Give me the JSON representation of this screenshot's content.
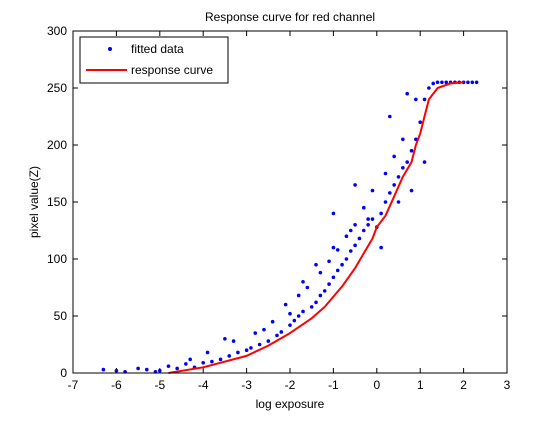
{
  "chart_data": {
    "type": "scatter",
    "title": "Response curve for red channel",
    "xlabel": "log exposure",
    "ylabel": "pixel value(Z)",
    "xlim": [
      -7,
      3
    ],
    "ylim": [
      0,
      300
    ],
    "xticks": [
      -7,
      -6,
      -5,
      -4,
      -3,
      -2,
      -1,
      0,
      1,
      2,
      3
    ],
    "yticks": [
      0,
      50,
      100,
      150,
      200,
      250,
      300
    ],
    "grid": false,
    "legend_position": "top-left",
    "series": [
      {
        "name": "fitted data",
        "kind": "scatter",
        "marker": "dot",
        "color": "#0000ff",
        "x": [
          -6.3,
          -6.0,
          -5.8,
          -5.5,
          -5.3,
          -5.1,
          -5.0,
          -4.8,
          -4.6,
          -4.4,
          -4.2,
          -4.0,
          -3.8,
          -3.6,
          -3.4,
          -3.2,
          -3.0,
          -2.9,
          -2.7,
          -2.5,
          -2.3,
          -2.2,
          -2.0,
          -1.9,
          -1.8,
          -1.7,
          -1.5,
          -1.4,
          -1.3,
          -1.2,
          -1.1,
          -1.0,
          -0.9,
          -0.8,
          -0.7,
          -0.6,
          -0.5,
          -0.4,
          -0.3,
          -0.2,
          -0.1,
          0.0,
          0.1,
          0.2,
          0.3,
          0.4,
          0.5,
          0.6,
          0.7,
          0.8,
          0.9,
          1.0,
          1.1,
          1.2,
          1.3,
          1.4,
          1.5,
          1.6,
          1.7,
          1.8,
          1.9,
          2.0,
          2.1,
          2.2,
          2.3,
          -3.5,
          -2.8,
          -2.4,
          -2.0,
          -1.8,
          -1.6,
          -1.3,
          -1.1,
          -0.9,
          -0.7,
          -0.5,
          -0.3,
          -0.1,
          0.2,
          0.4,
          0.6,
          0.9,
          -4.3,
          -3.9,
          -3.3,
          -2.6,
          -2.1,
          -1.7,
          -1.4,
          -1.0,
          -0.6,
          -0.2,
          0.1,
          0.5,
          0.8,
          1.1,
          -1.0,
          -0.5,
          0.3,
          0.7
        ],
        "y": [
          3,
          2,
          1,
          4,
          3,
          1,
          2,
          6,
          4,
          8,
          5,
          9,
          10,
          12,
          15,
          18,
          20,
          22,
          25,
          28,
          33,
          36,
          42,
          46,
          50,
          54,
          58,
          62,
          68,
          72,
          78,
          84,
          90,
          95,
          100,
          107,
          112,
          118,
          125,
          130,
          135,
          128,
          140,
          150,
          158,
          165,
          172,
          180,
          185,
          195,
          205,
          220,
          240,
          250,
          254,
          255,
          255,
          255,
          255,
          255,
          255,
          255,
          255,
          255,
          255,
          30,
          35,
          45,
          52,
          68,
          75,
          88,
          98,
          108,
          120,
          130,
          145,
          160,
          175,
          190,
          205,
          240,
          12,
          18,
          28,
          38,
          60,
          80,
          95,
          110,
          125,
          135,
          110,
          150,
          160,
          185,
          140,
          165,
          225,
          245
        ]
      },
      {
        "name": "response curve",
        "kind": "line",
        "color": "#ff0000",
        "x": [
          -4.8,
          -4.0,
          -3.0,
          -2.5,
          -2.0,
          -1.5,
          -1.2,
          -1.0,
          -0.8,
          -0.5,
          -0.3,
          -0.1,
          0.0,
          0.2,
          0.4,
          0.6,
          0.8,
          0.9,
          1.0,
          1.1,
          1.2,
          1.4,
          1.7,
          2.0
        ],
        "y": [
          0,
          5,
          15,
          24,
          35,
          48,
          58,
          67,
          76,
          92,
          105,
          118,
          128,
          138,
          155,
          172,
          185,
          200,
          210,
          225,
          240,
          250,
          254,
          255
        ]
      }
    ]
  }
}
